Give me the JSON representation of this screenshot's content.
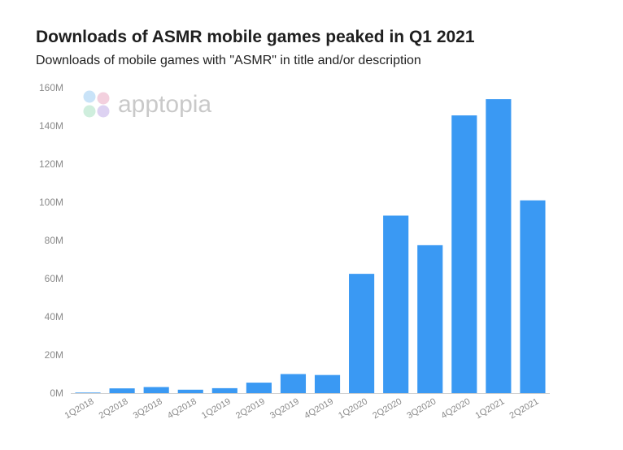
{
  "header": {
    "title": "Downloads of ASMR mobile games peaked in Q1 2021",
    "subtitle": "Downloads of mobile games with \"ASMR\" in title and/or description"
  },
  "watermark": {
    "text": "apptopia"
  },
  "colors": {
    "bar": "#3a99f3",
    "axis": "#cfcfcf",
    "watermark_dots": [
      "#c9e3f8",
      "#f3d0de",
      "#cfeedd",
      "#ddd2f2"
    ]
  },
  "chart_data": {
    "type": "bar",
    "title": "Downloads of ASMR mobile games peaked in Q1 2021",
    "subtitle": "Downloads of mobile games with \"ASMR\" in title and/or description",
    "xlabel": "",
    "ylabel": "",
    "categories": [
      "1Q2018",
      "2Q2018",
      "3Q2018",
      "4Q2018",
      "1Q2019",
      "2Q2019",
      "3Q2019",
      "4Q2019",
      "1Q2020",
      "2Q2020",
      "3Q2020",
      "4Q2020",
      "1Q2021",
      "2Q2021"
    ],
    "values": [
      0.3,
      2.5,
      3.2,
      1.8,
      2.6,
      5.5,
      10.0,
      9.5,
      62.5,
      93.0,
      77.5,
      145.5,
      154.0,
      101.0
    ],
    "unit": "M",
    "ylim": [
      0,
      160
    ],
    "yticks": [
      0,
      20,
      40,
      60,
      80,
      100,
      120,
      140,
      160
    ],
    "ytick_labels": [
      "0M",
      "20M",
      "40M",
      "60M",
      "80M",
      "100M",
      "120M",
      "140M",
      "160M"
    ],
    "grid": false,
    "legend": "none"
  }
}
